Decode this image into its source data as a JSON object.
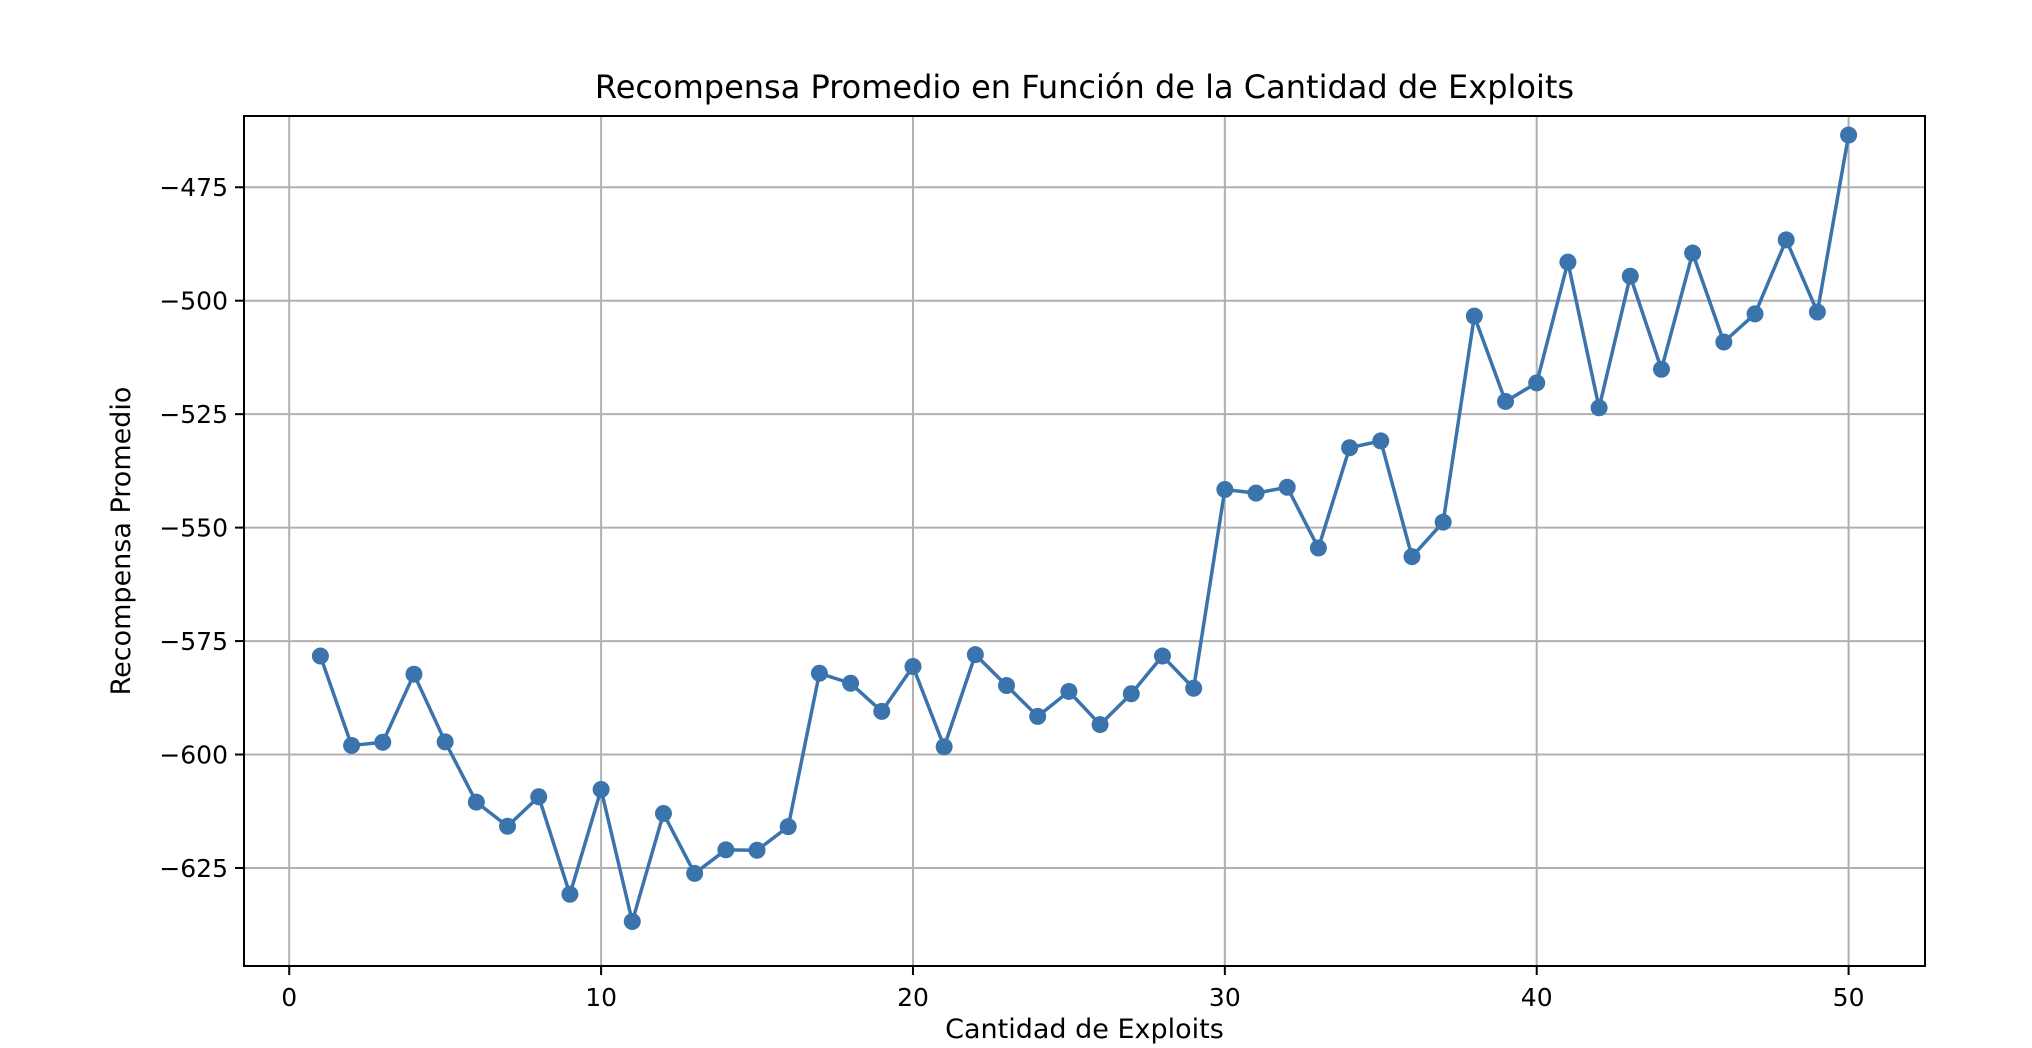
{
  "chart_data": {
    "type": "line",
    "title": "Recompensa Promedio en Función de la Cantidad de Exploits",
    "xlabel": "Cantidad de Exploits",
    "ylabel": "Recompensa Promedio",
    "xlim": [
      -1.45,
      52.45
    ],
    "ylim": [
      -646.6,
      -459.3
    ],
    "xticks": [
      0,
      10,
      20,
      30,
      40,
      50
    ],
    "yticks": [
      -625,
      -600,
      -575,
      -550,
      -525,
      -500,
      -475
    ],
    "grid": true,
    "legend": "none",
    "color": "#3b73ad",
    "marker": "circle",
    "x": [
      1,
      2,
      3,
      4,
      5,
      6,
      7,
      8,
      9,
      10,
      11,
      12,
      13,
      14,
      15,
      16,
      17,
      18,
      19,
      20,
      21,
      22,
      23,
      24,
      25,
      26,
      27,
      28,
      29,
      30,
      31,
      32,
      33,
      34,
      35,
      36,
      37,
      38,
      39,
      40,
      41,
      42,
      43,
      44,
      45,
      46,
      47,
      48,
      49,
      50
    ],
    "y": [
      -578.3,
      -598.0,
      -597.3,
      -582.3,
      -597.2,
      -610.5,
      -615.8,
      -609.3,
      -630.8,
      -607.7,
      -636.8,
      -613.0,
      -626.2,
      -621.0,
      -621.1,
      -615.9,
      -582.1,
      -584.3,
      -590.5,
      -580.6,
      -598.3,
      -578.0,
      -584.8,
      -591.6,
      -586.1,
      -593.4,
      -586.6,
      -578.3,
      -585.4,
      -541.6,
      -542.4,
      -541.1,
      -554.5,
      -532.4,
      -530.9,
      -556.4,
      -548.8,
      -503.4,
      -522.2,
      -518.1,
      -491.5,
      -523.6,
      -494.6,
      -515.1,
      -489.5,
      -509.1,
      -502.9,
      -486.6,
      -502.5,
      -463.5
    ]
  }
}
